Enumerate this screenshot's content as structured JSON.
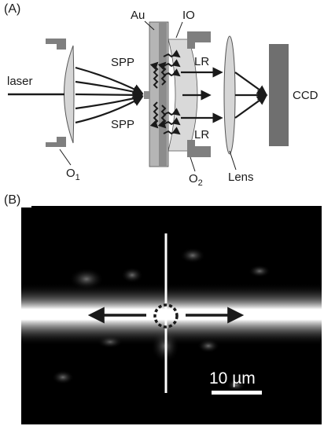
{
  "panel_a": {
    "label": "(A)",
    "labels": {
      "au": "Au",
      "io": "IO",
      "spp_top": "SPP",
      "spp_bottom": "SPP",
      "laser": "laser",
      "lr_top": "LR",
      "lr_bottom": "LR",
      "ccd": "CCD",
      "o1_main": "O",
      "o1_sub": "1",
      "o2_main": "O",
      "o2_sub": "2",
      "lens": "Lens"
    }
  },
  "panel_b": {
    "label": "(B)",
    "scale_bar": "10 µm"
  }
}
